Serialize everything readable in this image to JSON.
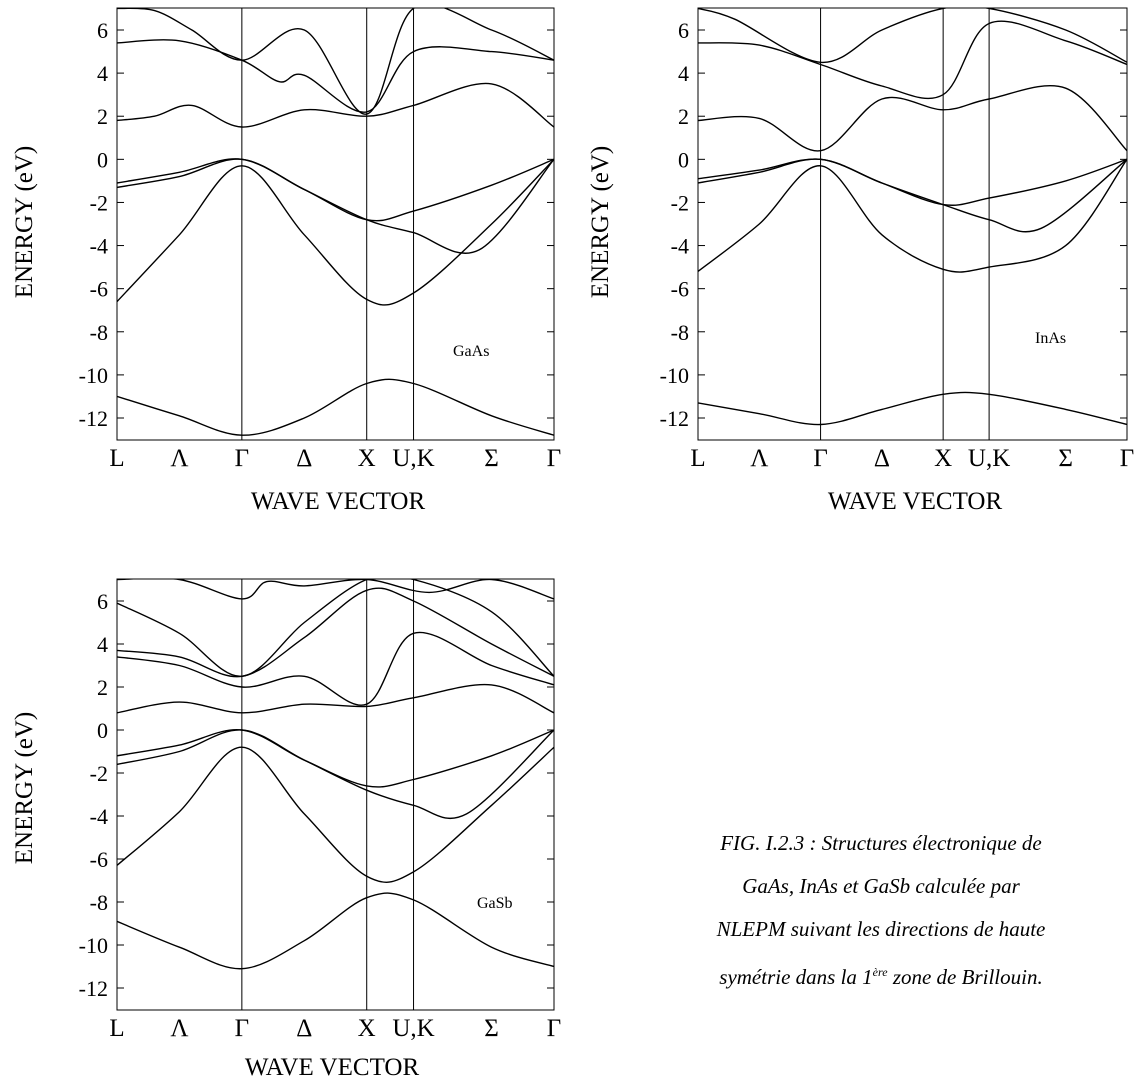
{
  "caption": {
    "line1": "FIG. I.2.3 : Structures électronique de",
    "line2": "GaAs, InAs et GaSb calculée par",
    "line3": "NLEPM suivant les directions de haute",
    "line4_pre": "symétrie dans la 1",
    "line4_sup": "ère",
    "line4_post": " zone de Brillouin."
  },
  "chart_data": [
    {
      "type": "line",
      "material": "GaAs",
      "xlabel": "WAVE VECTOR",
      "ylabel": "ENERGY (eV)",
      "ylim": [
        -13,
        7
      ],
      "yticks": [
        6,
        4,
        2,
        0,
        -2,
        -4,
        -6,
        -8,
        -10,
        -12
      ],
      "k_points": [
        "L",
        "Λ",
        "Γ",
        "Δ",
        "X",
        "U,K",
        "Σ",
        "Γ"
      ],
      "k_positions": [
        0,
        0.5,
        1,
        1.5,
        2,
        2.375,
        3.0,
        3.5
      ],
      "vertical_lines": [
        1,
        2,
        2.375
      ],
      "bands": [
        [
          [
            0,
            -11.0
          ],
          [
            0.5,
            -11.9
          ],
          [
            1,
            -12.8
          ],
          [
            1.5,
            -12.0
          ],
          [
            2,
            -10.4
          ],
          [
            2.375,
            -10.4
          ],
          [
            3.0,
            -11.9
          ],
          [
            3.5,
            -12.8
          ]
        ],
        [
          [
            0,
            -6.6
          ],
          [
            0.5,
            -3.5
          ],
          [
            1,
            -0.3
          ],
          [
            1.5,
            -3.5
          ],
          [
            2,
            -6.5
          ],
          [
            2.375,
            -6.2
          ],
          [
            3.0,
            -3.0
          ],
          [
            3.5,
            0
          ]
        ],
        [
          [
            0,
            -1.3
          ],
          [
            0.5,
            -0.8
          ],
          [
            1,
            0
          ],
          [
            1.5,
            -1.4
          ],
          [
            2,
            -2.8
          ],
          [
            2.375,
            -3.4
          ],
          [
            2.9,
            -4.2
          ],
          [
            3.5,
            0
          ]
        ],
        [
          [
            0,
            -1.1
          ],
          [
            0.5,
            -0.6
          ],
          [
            1,
            0
          ],
          [
            1.5,
            -1.4
          ],
          [
            2,
            -2.8
          ],
          [
            2.375,
            -2.4
          ],
          [
            3.0,
            -1.2
          ],
          [
            3.5,
            0
          ]
        ],
        [
          [
            0,
            1.8
          ],
          [
            0.3,
            2.0
          ],
          [
            0.6,
            2.5
          ],
          [
            1,
            1.5
          ],
          [
            1.5,
            2.3
          ],
          [
            2,
            2.0
          ],
          [
            2.375,
            2.5
          ],
          [
            3.0,
            3.5
          ],
          [
            3.5,
            1.5
          ]
        ],
        [
          [
            0,
            5.4
          ],
          [
            0.5,
            5.5
          ],
          [
            1,
            4.6
          ],
          [
            1.3,
            3.6
          ],
          [
            1.5,
            3.9
          ],
          [
            2,
            2.2
          ],
          [
            2.375,
            5.0
          ],
          [
            3.0,
            5.0
          ],
          [
            3.5,
            4.6
          ]
        ],
        [
          [
            0,
            7
          ],
          [
            0.3,
            6.9
          ],
          [
            0.6,
            6.0
          ],
          [
            1,
            4.6
          ],
          [
            1.5,
            6.0
          ],
          [
            2,
            2.1
          ],
          [
            2.375,
            7
          ],
          [
            3.0,
            6.0
          ],
          [
            3.5,
            4.6
          ]
        ]
      ]
    },
    {
      "type": "line",
      "material": "InAs",
      "xlabel": "WAVE VECTOR",
      "ylabel": "ENERGY (eV)",
      "ylim": [
        -13,
        7
      ],
      "yticks": [
        6,
        4,
        2,
        0,
        -2,
        -4,
        -6,
        -8,
        -10,
        -12
      ],
      "k_points": [
        "L",
        "Λ",
        "Γ",
        "Δ",
        "X",
        "U,K",
        "Σ",
        "Γ"
      ],
      "k_positions": [
        0,
        0.5,
        1,
        1.5,
        2,
        2.375,
        3.0,
        3.5
      ],
      "vertical_lines": [
        1,
        2,
        2.375
      ],
      "bands": [
        [
          [
            0,
            -11.3
          ],
          [
            0.5,
            -11.8
          ],
          [
            1,
            -12.3
          ],
          [
            1.5,
            -11.6
          ],
          [
            2,
            -10.9
          ],
          [
            2.375,
            -10.9
          ],
          [
            3.0,
            -11.6
          ],
          [
            3.5,
            -12.3
          ]
        ],
        [
          [
            0,
            -5.2
          ],
          [
            0.5,
            -3.0
          ],
          [
            1,
            -0.3
          ],
          [
            1.5,
            -3.5
          ],
          [
            2,
            -5.1
          ],
          [
            2.375,
            -5.0
          ],
          [
            3.0,
            -4.0
          ],
          [
            3.5,
            0
          ]
        ],
        [
          [
            0,
            -1.1
          ],
          [
            0.5,
            -0.6
          ],
          [
            1,
            0
          ],
          [
            1.5,
            -1.1
          ],
          [
            2,
            -2.1
          ],
          [
            2.375,
            -2.8
          ],
          [
            2.8,
            -3.2
          ],
          [
            3.5,
            0
          ]
        ],
        [
          [
            0,
            -0.9
          ],
          [
            0.5,
            -0.5
          ],
          [
            1,
            0
          ],
          [
            1.5,
            -1.1
          ],
          [
            2,
            -2.1
          ],
          [
            2.375,
            -1.8
          ],
          [
            3.0,
            -1.0
          ],
          [
            3.5,
            0
          ]
        ],
        [
          [
            0,
            1.8
          ],
          [
            0.5,
            1.9
          ],
          [
            1,
            0.4
          ],
          [
            1.5,
            2.8
          ],
          [
            2,
            2.3
          ],
          [
            2.375,
            2.8
          ],
          [
            3.0,
            3.3
          ],
          [
            3.5,
            0.4
          ]
        ],
        [
          [
            0,
            5.4
          ],
          [
            0.5,
            5.3
          ],
          [
            1,
            4.4
          ],
          [
            1.5,
            3.4
          ],
          [
            2,
            3.0
          ],
          [
            2.375,
            6.3
          ],
          [
            3.0,
            5.5
          ],
          [
            3.5,
            4.4
          ]
        ],
        [
          [
            0,
            7
          ],
          [
            0.3,
            6.5
          ],
          [
            1,
            4.5
          ],
          [
            1.5,
            6.0
          ],
          [
            2,
            7
          ],
          [
            2.375,
            7
          ],
          [
            3.0,
            6.0
          ],
          [
            3.5,
            4.5
          ]
        ]
      ]
    },
    {
      "type": "line",
      "material": "GaSb",
      "xlabel": "WAVE VECTOR",
      "ylabel": "ENERGY (eV)",
      "ylim": [
        -13,
        7
      ],
      "yticks": [
        6,
        4,
        2,
        0,
        -2,
        -4,
        -6,
        -8,
        -10,
        -12
      ],
      "k_points": [
        "L",
        "Λ",
        "Γ",
        "Δ",
        "X",
        "U,K",
        "Σ",
        "Γ"
      ],
      "k_positions": [
        0,
        0.5,
        1,
        1.5,
        2,
        2.375,
        3.0,
        3.5
      ],
      "vertical_lines": [
        1,
        2,
        2.375
      ],
      "bands": [
        [
          [
            0,
            -8.9
          ],
          [
            0.5,
            -10.1
          ],
          [
            1,
            -11.1
          ],
          [
            1.5,
            -9.8
          ],
          [
            2,
            -7.8
          ],
          [
            2.375,
            -7.9
          ],
          [
            3.0,
            -10.1
          ],
          [
            3.5,
            -11.0
          ]
        ],
        [
          [
            0,
            -6.3
          ],
          [
            0.5,
            -3.8
          ],
          [
            1,
            -0.8
          ],
          [
            1.5,
            -3.9
          ],
          [
            2,
            -6.8
          ],
          [
            2.375,
            -6.6
          ],
          [
            3.0,
            -3.5
          ],
          [
            3.5,
            -0.8
          ]
        ],
        [
          [
            0,
            -1.6
          ],
          [
            0.5,
            -1.0
          ],
          [
            1,
            0
          ],
          [
            1.5,
            -1.4
          ],
          [
            2,
            -2.8
          ],
          [
            2.375,
            -3.5
          ],
          [
            2.8,
            -3.9
          ],
          [
            3.5,
            0
          ]
        ],
        [
          [
            0,
            -1.2
          ],
          [
            0.5,
            -0.7
          ],
          [
            1,
            0
          ],
          [
            1.5,
            -1.4
          ],
          [
            2,
            -2.6
          ],
          [
            2.375,
            -2.3
          ],
          [
            3.0,
            -1.2
          ],
          [
            3.5,
            0
          ]
        ],
        [
          [
            0,
            0.8
          ],
          [
            0.5,
            1.3
          ],
          [
            1,
            0.8
          ],
          [
            1.5,
            1.2
          ],
          [
            2,
            1.1
          ],
          [
            2.375,
            1.5
          ],
          [
            3.0,
            2.1
          ],
          [
            3.5,
            0.8
          ]
        ],
        [
          [
            0,
            3.4
          ],
          [
            0.5,
            3.0
          ],
          [
            1,
            2.0
          ],
          [
            1.5,
            2.5
          ],
          [
            2,
            1.2
          ],
          [
            2.375,
            4.5
          ],
          [
            3.0,
            3.0
          ],
          [
            3.5,
            2.1
          ]
        ],
        [
          [
            0,
            3.7
          ],
          [
            0.5,
            3.4
          ],
          [
            1,
            2.5
          ],
          [
            1.5,
            4.3
          ],
          [
            2,
            6.5
          ],
          [
            2.375,
            6.0
          ],
          [
            3.0,
            4.0
          ],
          [
            3.5,
            2.5
          ]
        ],
        [
          [
            0,
            5.9
          ],
          [
            0.5,
            4.5
          ],
          [
            1,
            2.5
          ],
          [
            1.5,
            5.0
          ],
          [
            2,
            7
          ],
          [
            2.375,
            7
          ],
          [
            3.0,
            5.5
          ],
          [
            3.5,
            2.5
          ]
        ],
        [
          [
            0,
            7
          ],
          [
            0.5,
            7
          ],
          [
            1,
            6.1
          ],
          [
            1.2,
            6.9
          ],
          [
            1.5,
            6.7
          ],
          [
            2,
            7
          ],
          [
            2.5,
            6.4
          ],
          [
            3.0,
            7
          ],
          [
            3.5,
            6.1
          ]
        ]
      ]
    }
  ]
}
